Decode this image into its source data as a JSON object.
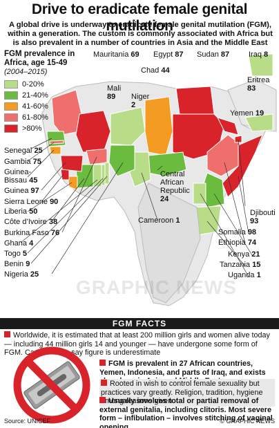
{
  "title": "Drive to eradicate female genital mutilation",
  "intro": "A global drive is underway to eradicate female genital mutilation (FGM), within a generation. The custom is commonly associated with Africa but is also prevalent in a number of countries in Asia and the Middle East",
  "legend": {
    "title": "FGM prevalence in Africa, age 15-49",
    "subtitle": "(2004–2015)",
    "items": [
      {
        "label": "0-20%",
        "color": "#b9dc88"
      },
      {
        "label": "21-40%",
        "color": "#6bbb3e"
      },
      {
        "label": "41-60%",
        "color": "#f39b22"
      },
      {
        "label": "61-80%",
        "color": "#ef6f6c"
      },
      {
        "label": ">80%",
        "color": "#d8232a"
      }
    ]
  },
  "countries": {
    "mauritania": {
      "name": "Mauritania",
      "value": "69"
    },
    "egypt": {
      "name": "Egypt",
      "value": "87"
    },
    "sudan": {
      "name": "Sudan",
      "value": "87"
    },
    "iraq": {
      "name": "Iraq",
      "value": "8"
    },
    "chad": {
      "name": "Chad",
      "value": "44"
    },
    "eritrea": {
      "name": "Eritrea",
      "value": "83"
    },
    "mali": {
      "name": "Mali",
      "value": "89"
    },
    "niger": {
      "name": "Niger",
      "value": "2"
    },
    "yemen": {
      "name": "Yemen",
      "value": "19"
    },
    "senegal": {
      "name": "Senegal",
      "value": "25"
    },
    "gambia": {
      "name": "Gambia",
      "value": "75"
    },
    "guinea_bissau": {
      "name": "Guinea-Bissau",
      "value": "45"
    },
    "guinea": {
      "name": "Guinea",
      "value": "97"
    },
    "sierra_leone": {
      "name": "Sierra Leone",
      "value": "90"
    },
    "liberia": {
      "name": "Liberia",
      "value": "50"
    },
    "cote": {
      "name": "Côte d’Ivoire",
      "value": "38"
    },
    "burkina": {
      "name": "Burkina Faso",
      "value": "76"
    },
    "ghana": {
      "name": "Ghana",
      "value": "4"
    },
    "togo": {
      "name": "Togo",
      "value": "5"
    },
    "benin": {
      "name": "Benin",
      "value": "9"
    },
    "nigeria": {
      "name": "Nigeria",
      "value": "25"
    },
    "car": {
      "name": "Central African Republic",
      "value": "24"
    },
    "cameroon": {
      "name": "Cameroon",
      "value": "1"
    },
    "djibouti": {
      "name": "Djibouti",
      "value": "93"
    },
    "somalia": {
      "name": "Somalia",
      "value": "98"
    },
    "ethiopia": {
      "name": "Ethiopia",
      "value": "74"
    },
    "kenya": {
      "name": "Kenya",
      "value": "21"
    },
    "tanzania": {
      "name": "Tanzania",
      "value": "15"
    },
    "uganda": {
      "name": "Uganda",
      "value": "1"
    }
  },
  "watermark": "GRAPHIC NEWS",
  "facts_heading": "FGM FACTS",
  "facts": [
    "Worldwide, it is estimated that at least 200 million girls and women alive today — including 44 million girls 14 and younger — have undergone some form of FGM. Campaigners say figure is underestimate",
    "FGM is prevalent in 27 African countries, Yemen, Indonesia, and parts of Iraq, and exists elsewhere in Asia and Middle East",
    "Rooted in wish to control female sexuality but practices vary greatly. Religion, tradition, hygiene among reasons given",
    "Usually involves total or partial removal of external genitalia, including clitoris. Most severe form – infibulation – involves stitching of vaginal opening"
  ],
  "source": "Source: UNICEF",
  "credit": "© GRAPHIC NEWS"
}
